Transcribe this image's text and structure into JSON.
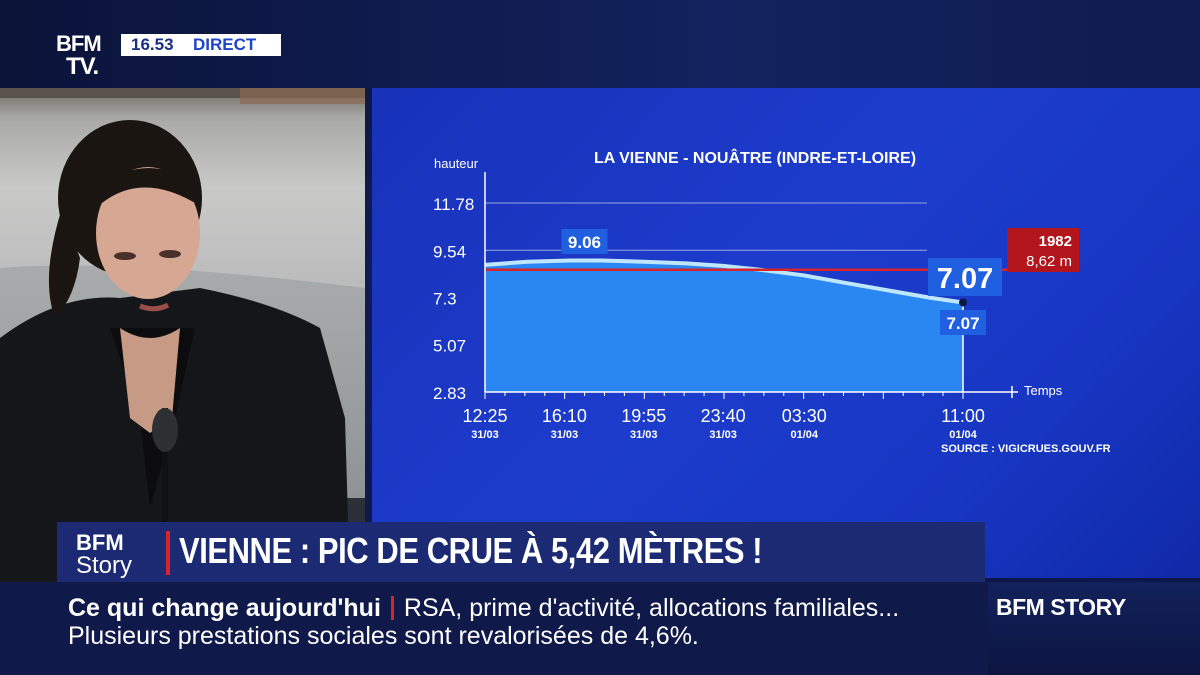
{
  "channel": {
    "logo_line1": "BFM",
    "logo_line2": "TV.",
    "clock": "16.53",
    "live_label": "DIRECT"
  },
  "chart_data": {
    "type": "area",
    "title": "LA VIENNE - NOUÂTRE (INDRE-ET-LOIRE)",
    "ylabel": "hauteur",
    "xlabel": "Temps",
    "yticks": [
      "11.78",
      "9.54",
      "7.3",
      "5.07",
      "2.83"
    ],
    "ytick_values": [
      11.78,
      9.54,
      7.3,
      5.07,
      2.83
    ],
    "ylim": [
      2.83,
      11.78
    ],
    "xticks": [
      {
        "time": "12:25",
        "date": "31/03"
      },
      {
        "time": "16:10",
        "date": "31/03"
      },
      {
        "time": "19:55",
        "date": "31/03"
      },
      {
        "time": "23:40",
        "date": "31/03"
      },
      {
        "time": "03:30",
        "date": "01/04"
      },
      {
        "time": "11:00",
        "date": "01/04"
      }
    ],
    "xtick_hours": [
      0,
      3.75,
      7.5,
      11.25,
      15.0833,
      22.5833
    ],
    "series": [
      {
        "hours": [
          0,
          2,
          4,
          5.5,
          7.5,
          9.5,
          11.25,
          13,
          15.0833,
          17,
          19,
          21,
          22.5833
        ],
        "values": [
          8.85,
          9.0,
          9.06,
          9.06,
          9.0,
          8.92,
          8.8,
          8.62,
          8.35,
          8.0,
          7.65,
          7.3,
          7.07
        ]
      }
    ],
    "max_label": "9.06",
    "current_value_large": "7.07",
    "current_value_small": "7.07",
    "reference": {
      "year": "1982",
      "value_label": "8,62 m",
      "value": 8.62
    },
    "source": "SOURCE : VIGICRUES.GOUV.FR",
    "grid": true,
    "colors": {
      "area": "#2a86f0",
      "line": "#bfe6ff",
      "reference": "#d8232a",
      "label_bg": "#1f5fe0",
      "background": "#1b38c6"
    }
  },
  "headline": {
    "program_logo_line1": "BFM",
    "program_logo_line2": "Story",
    "text": "VIENNE : PIC DE CRUE À 5,42 MÈTRES !"
  },
  "ticker": {
    "label": "Ce qui change aujourd'hui",
    "line1": "RSA, prime d'activité, allocations familiales...",
    "line2": "Plusieurs prestations sociales sont revalorisées de 4,6%."
  },
  "program": {
    "name": "BFM STORY"
  }
}
